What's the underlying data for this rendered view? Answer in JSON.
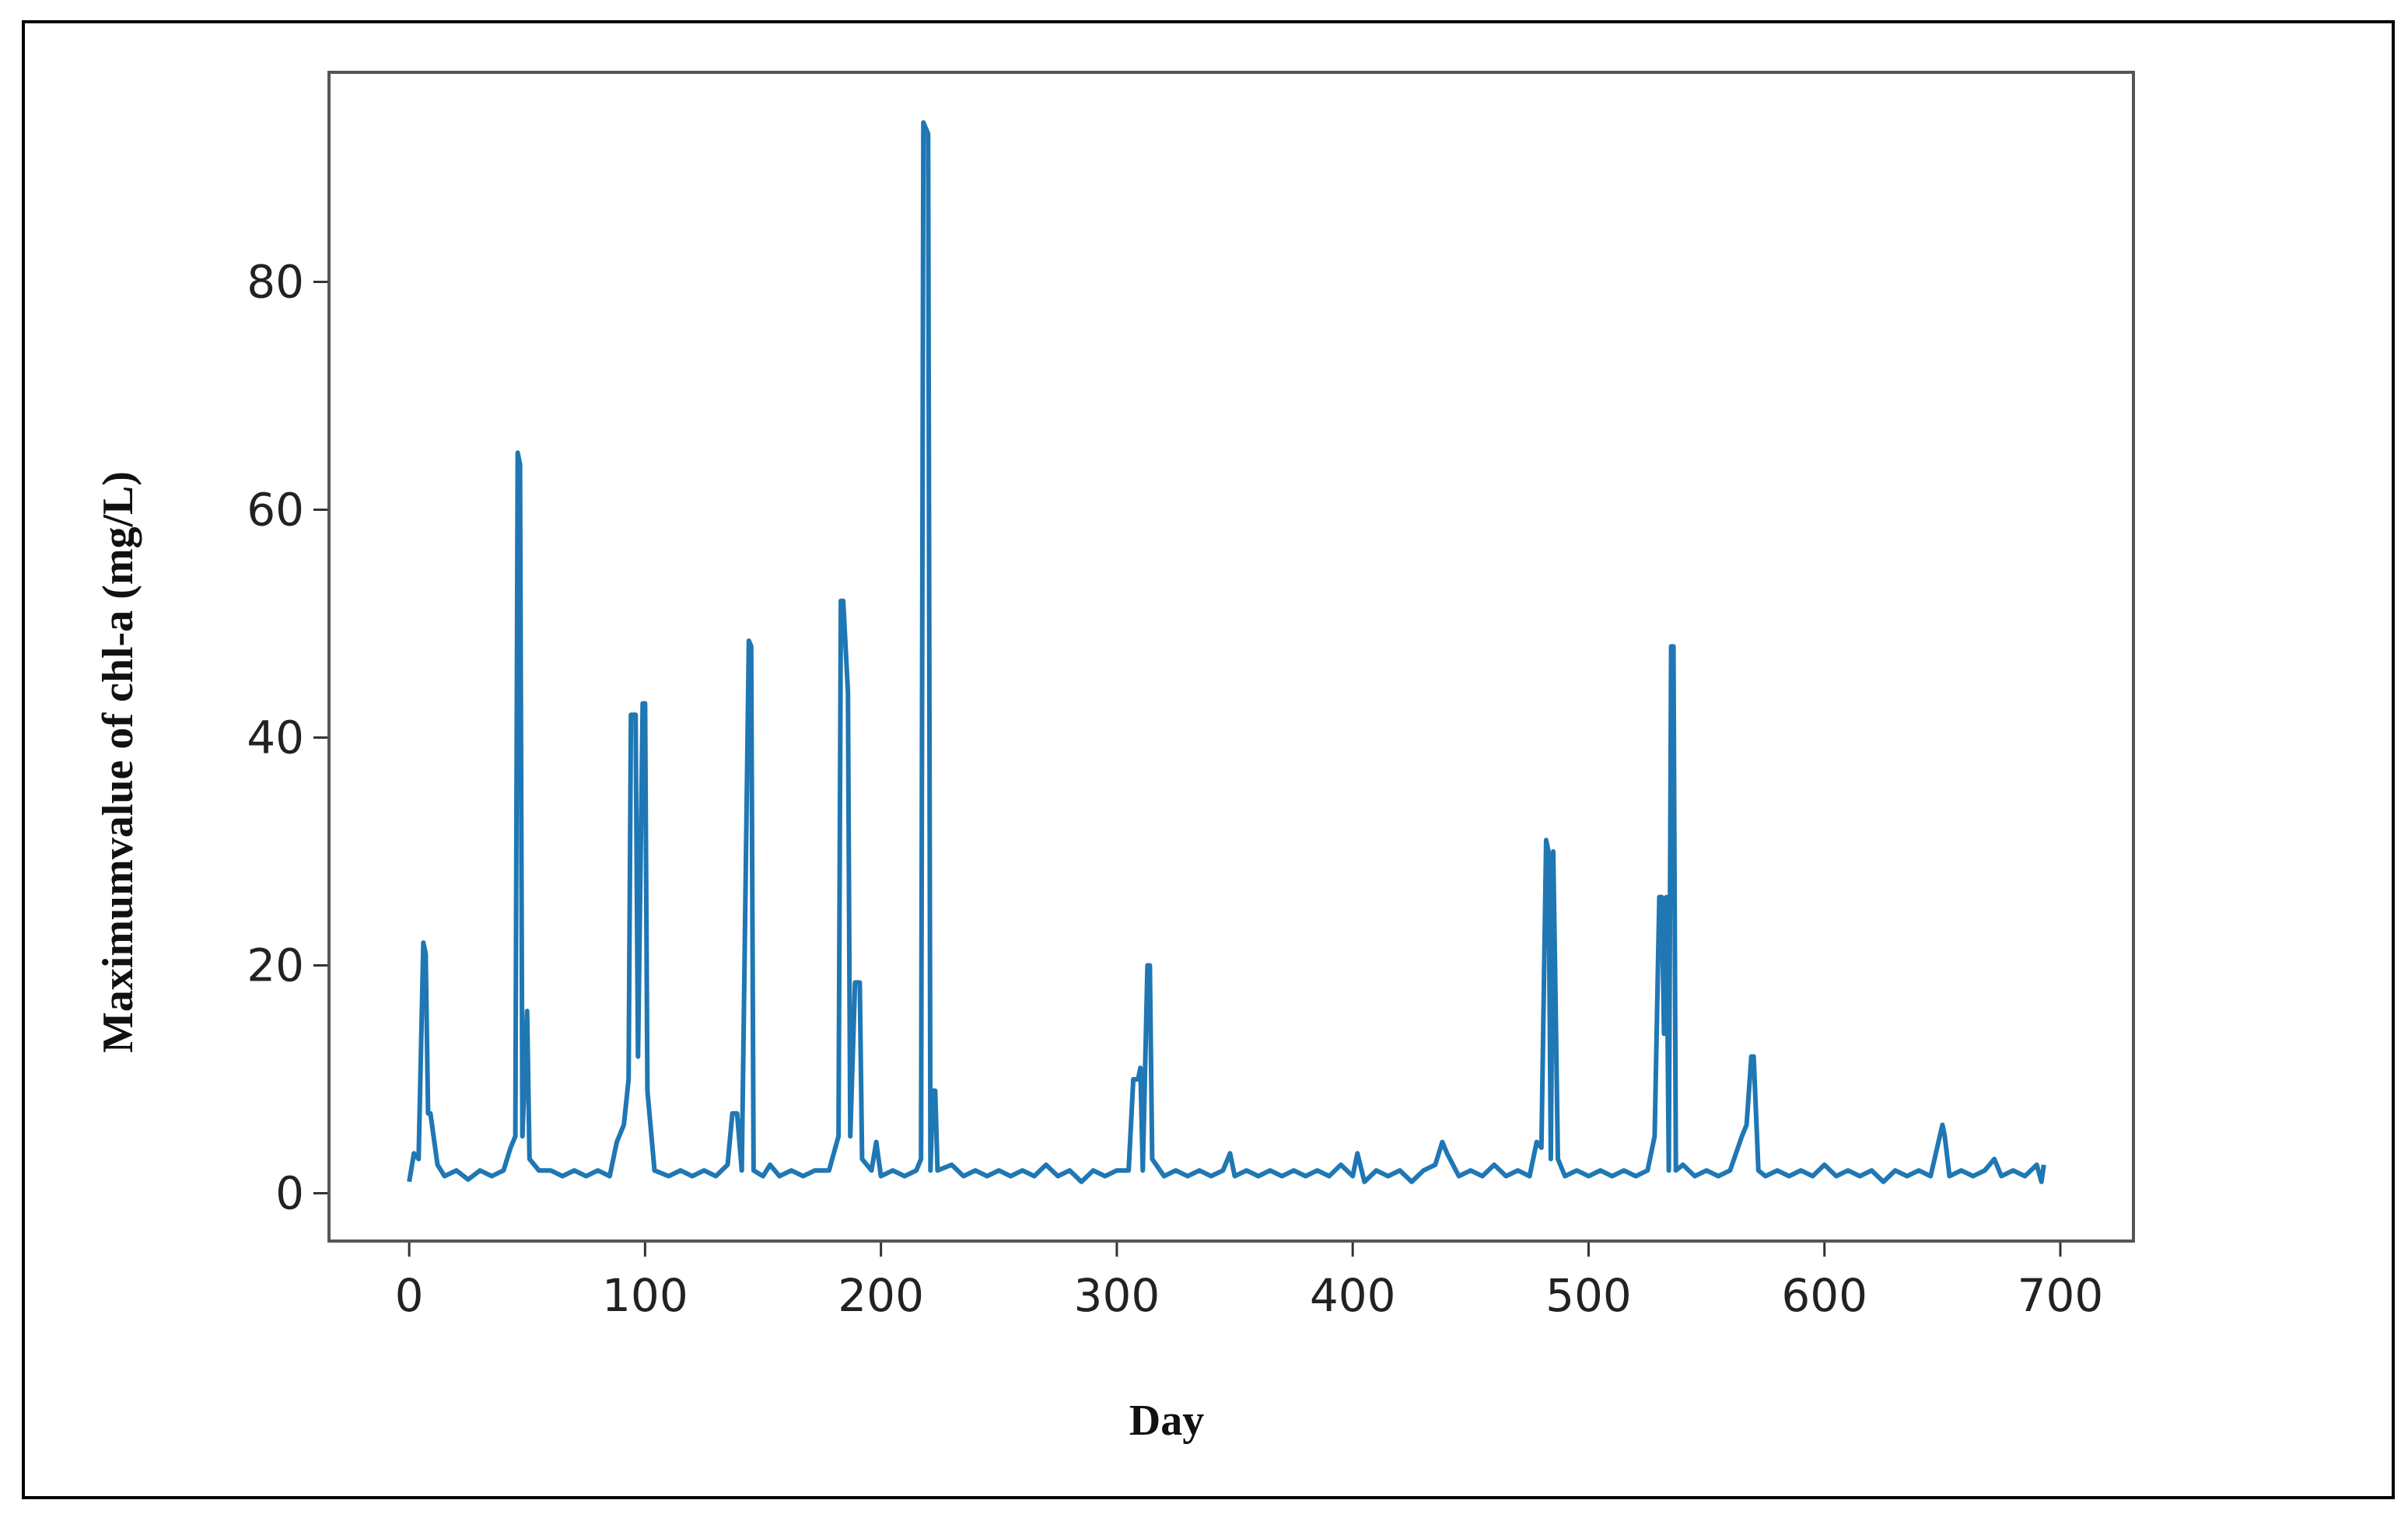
{
  "chart_data": {
    "type": "line",
    "xlabel": "Day",
    "ylabel": "Maximumvalue of chl-a (mg/L)",
    "x": [
      0,
      2,
      4,
      6,
      7,
      8,
      9,
      12,
      15,
      20,
      25,
      30,
      35,
      40,
      43,
      45,
      46,
      47,
      48,
      50,
      51,
      55,
      60,
      65,
      70,
      75,
      80,
      85,
      88,
      91,
      93,
      94,
      96,
      97,
      99,
      100,
      101,
      104,
      110,
      115,
      120,
      125,
      130,
      135,
      137,
      139,
      141,
      144,
      145,
      146,
      150,
      153,
      157,
      162,
      167,
      172,
      178,
      182,
      183,
      184,
      186,
      187,
      189,
      191,
      192,
      196,
      198,
      200,
      205,
      210,
      215,
      217,
      218,
      220,
      221,
      222,
      223,
      224,
      230,
      235,
      240,
      245,
      250,
      255,
      260,
      265,
      270,
      275,
      280,
      285,
      290,
      295,
      300,
      305,
      307,
      309,
      310,
      311,
      313,
      314,
      315,
      320,
      325,
      330,
      335,
      340,
      345,
      348,
      350,
      355,
      360,
      365,
      370,
      375,
      380,
      385,
      390,
      395,
      400,
      402,
      405,
      410,
      415,
      420,
      425,
      430,
      435,
      438,
      440,
      445,
      450,
      455,
      460,
      465,
      470,
      475,
      478,
      480,
      482,
      483,
      484,
      485,
      486,
      487,
      490,
      495,
      500,
      505,
      510,
      515,
      520,
      525,
      528,
      530,
      531,
      532,
      533,
      534,
      535,
      536,
      537,
      540,
      545,
      550,
      555,
      560,
      565,
      567,
      569,
      570,
      572,
      575,
      580,
      585,
      590,
      595,
      600,
      605,
      610,
      615,
      620,
      625,
      630,
      635,
      640,
      645,
      650,
      651,
      653,
      658,
      663,
      668,
      672,
      675,
      680,
      685,
      690,
      692,
      693
    ],
    "series": [
      {
        "name": "chl-a",
        "color": "#1f77b4",
        "values": [
          1,
          3.5,
          3,
          22,
          21,
          7,
          7,
          2.5,
          1.5,
          2,
          1.2,
          2,
          1.5,
          2,
          4,
          5,
          65,
          64,
          5,
          16,
          3,
          2,
          2,
          1.5,
          2,
          1.5,
          2,
          1.5,
          4.5,
          6,
          10,
          42,
          42,
          12,
          43,
          43,
          9,
          2,
          1.5,
          2,
          1.5,
          2,
          1.5,
          2.5,
          7,
          7,
          2,
          48.5,
          48,
          2,
          1.5,
          2.5,
          1.5,
          2,
          1.5,
          2,
          2,
          5,
          52,
          52,
          44,
          5,
          18.5,
          18.5,
          3,
          2,
          4.5,
          1.5,
          2,
          1.5,
          2,
          3,
          94,
          93,
          2,
          9,
          9,
          2,
          2.5,
          1.5,
          2,
          1.5,
          2,
          1.5,
          2,
          1.5,
          2.5,
          1.5,
          2,
          1,
          2,
          1.5,
          2,
          2,
          10,
          10,
          11,
          2,
          20,
          20,
          3,
          1.5,
          2,
          1.5,
          2,
          1.5,
          2,
          3.5,
          1.5,
          2,
          1.5,
          2,
          1.5,
          2,
          1.5,
          2,
          1.5,
          2.5,
          1.5,
          3.5,
          1,
          2,
          1.5,
          2,
          1,
          2,
          2.5,
          4.5,
          3.5,
          1.5,
          2,
          1.5,
          2.5,
          1.5,
          2,
          1.5,
          4.5,
          4,
          31,
          30,
          3,
          30,
          17,
          3,
          1.5,
          2,
          1.5,
          2,
          1.5,
          2,
          1.5,
          2,
          5,
          26,
          26,
          14,
          26,
          2,
          48,
          48,
          2,
          2.5,
          1.5,
          2,
          1.5,
          2,
          5,
          6,
          12,
          12,
          2,
          1.5,
          2,
          1.5,
          2,
          1.5,
          2.5,
          1.5,
          2,
          1.5,
          2,
          1,
          2,
          1.5,
          2,
          1.5,
          6,
          5,
          1.5,
          2,
          1.5,
          2,
          3,
          1.5,
          2,
          1.5,
          2.5,
          1,
          2.5
        ]
      }
    ],
    "xlim": [
      -34,
      731
    ],
    "ylim": [
      -4.2,
      98.4
    ],
    "xticks": [
      0,
      100,
      200,
      300,
      400,
      500,
      600,
      700
    ],
    "yticks": [
      0,
      20,
      40,
      60,
      80
    ]
  }
}
